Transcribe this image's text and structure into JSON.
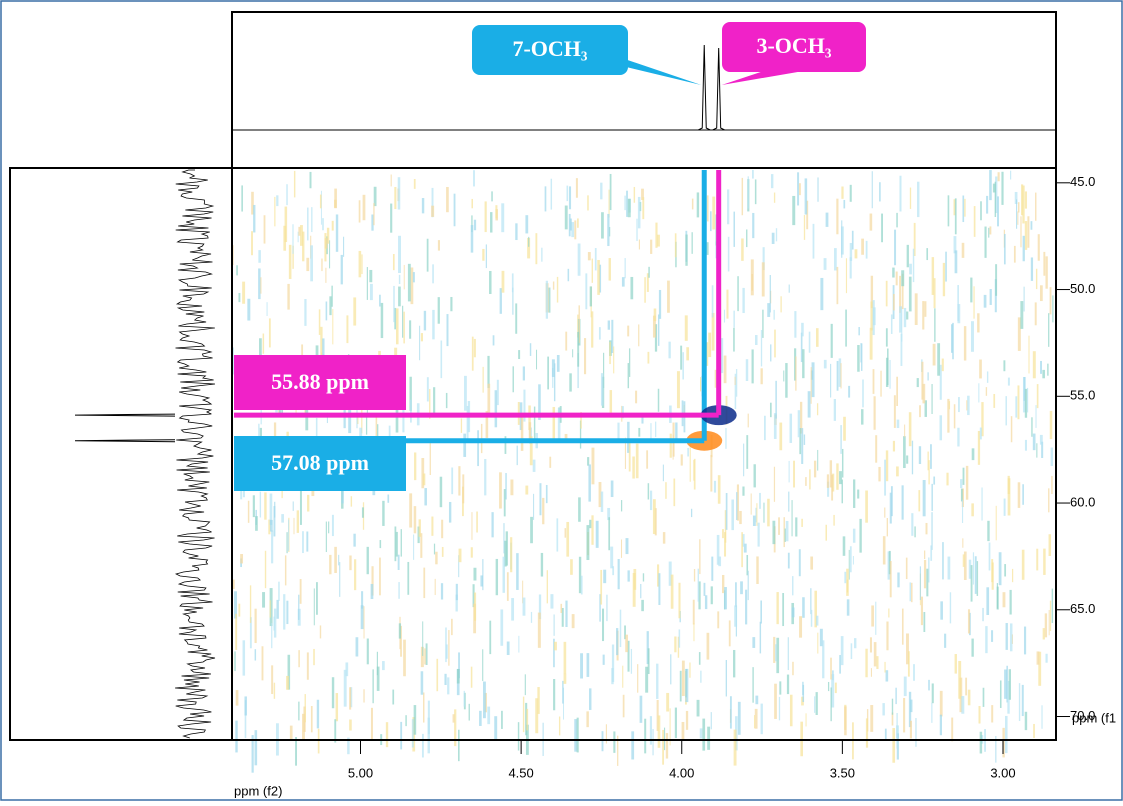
{
  "chart_data": {
    "type": "nmr2d",
    "x_label": "ppm (f2)",
    "y_label": "ppm (f1",
    "xlim": [
      5.4,
      2.835
    ],
    "ylim": [
      44.4,
      71.1
    ],
    "xticks": [
      {
        "value": 5,
        "label": "5.00"
      },
      {
        "value": 4.5,
        "label": "4.50"
      },
      {
        "value": 4,
        "label": "4.00"
      },
      {
        "value": 3.5,
        "label": "3.50"
      },
      {
        "value": 3,
        "label": "3.00"
      }
    ],
    "yticks": [
      {
        "value": 45,
        "label": "45.0"
      },
      {
        "value": 50,
        "label": "50.0"
      },
      {
        "value": 55,
        "label": "55.0"
      },
      {
        "value": 60,
        "label": "60.0"
      },
      {
        "value": 65,
        "label": "65.0"
      },
      {
        "value": 70,
        "label": "70.0"
      }
    ],
    "series": [
      {
        "name": "7-OCH₃",
        "color": "#1aaee6",
        "x": [
          3.93
        ],
        "y": [
          57.08
        ],
        "value_labels": [
          "57.08 ppm"
        ]
      },
      {
        "name": "3-OCH₃",
        "color": "#f022c8",
        "x": [
          3.885
        ],
        "y": [
          55.88
        ],
        "value_labels": [
          "55.88 ppm"
        ]
      }
    ]
  }
}
